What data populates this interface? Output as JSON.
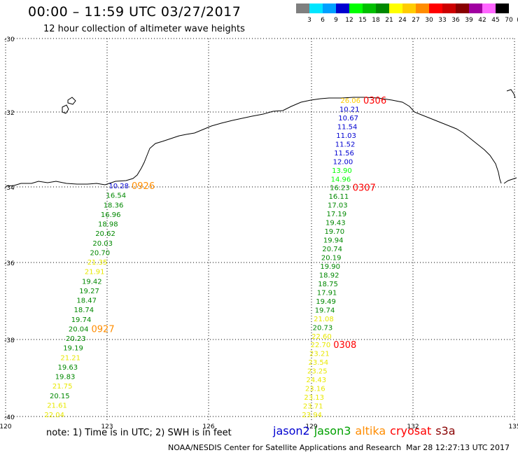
{
  "header": {
    "title": "00:00 – 11:59 UTC 03/27/2017",
    "subtitle": "12 hour collection of altimeter wave heights"
  },
  "color_scale": {
    "unit_label": "(ft)",
    "entries": [
      {
        "label": "3",
        "color": "#7f7f7f"
      },
      {
        "label": "6",
        "color": "#00e5ff"
      },
      {
        "label": "9",
        "color": "#00a0ff"
      },
      {
        "label": "12",
        "color": "#0000d0"
      },
      {
        "label": "15",
        "color": "#00ff00"
      },
      {
        "label": "18",
        "color": "#00c000"
      },
      {
        "label": "21",
        "color": "#008800"
      },
      {
        "label": "24",
        "color": "#ffff00"
      },
      {
        "label": "27",
        "color": "#ffcc00"
      },
      {
        "label": "30",
        "color": "#ff8c00"
      },
      {
        "label": "33",
        "color": "#ff0000"
      },
      {
        "label": "36",
        "color": "#cc0000"
      },
      {
        "label": "39",
        "color": "#880000"
      },
      {
        "label": "42",
        "color": "#a000a0"
      },
      {
        "label": "45",
        "color": "#ff66ff"
      },
      {
        "label": "70",
        "color": "#000000"
      }
    ]
  },
  "axes": {
    "lat_labels": [
      "-30",
      "-32",
      "-34",
      "-36",
      "-38",
      "-40"
    ],
    "lon_labels": [
      "120",
      "123",
      "126",
      "129",
      "132",
      "135"
    ]
  },
  "tracks": [
    {
      "satellite": "altika",
      "time_labels": [
        {
          "text": "0926",
          "at": 0,
          "color": "#ff8c00"
        },
        {
          "text": "0927",
          "at": 15,
          "color": "#ff8c00"
        }
      ],
      "values": [
        {
          "v": "10.28",
          "c": "#0000d0"
        },
        {
          "v": "16.54",
          "c": "#008800"
        },
        {
          "v": "18.36",
          "c": "#008800"
        },
        {
          "v": "16.96",
          "c": "#008800"
        },
        {
          "v": "18.98",
          "c": "#008800"
        },
        {
          "v": "20.62",
          "c": "#008800"
        },
        {
          "v": "20.03",
          "c": "#008800"
        },
        {
          "v": "20.70",
          "c": "#008800"
        },
        {
          "v": "21.35",
          "c": "#e8e800"
        },
        {
          "v": "21.91",
          "c": "#e8e800"
        },
        {
          "v": "19.42",
          "c": "#008800"
        },
        {
          "v": "19.27",
          "c": "#008800"
        },
        {
          "v": "18.47",
          "c": "#008800"
        },
        {
          "v": "18.74",
          "c": "#008800"
        },
        {
          "v": "19.74",
          "c": "#008800"
        },
        {
          "v": "20.04",
          "c": "#008800"
        },
        {
          "v": "20.23",
          "c": "#008800"
        },
        {
          "v": "19.19",
          "c": "#008800"
        },
        {
          "v": "21.21",
          "c": "#e8e800"
        },
        {
          "v": "19.63",
          "c": "#008800"
        },
        {
          "v": "19.83",
          "c": "#008800"
        },
        {
          "v": "21.75",
          "c": "#e8e800"
        },
        {
          "v": "20.15",
          "c": "#008800"
        },
        {
          "v": "21.61",
          "c": "#e8e800"
        },
        {
          "v": "22.04",
          "c": "#e8e800"
        }
      ]
    },
    {
      "satellite": "cryosat",
      "time_labels": [
        {
          "text": "0306",
          "at": 0,
          "color": "#ff0000"
        },
        {
          "text": "0307",
          "at": 10,
          "color": "#ff0000"
        },
        {
          "text": "0308",
          "at": 28,
          "color": "#ff0000"
        }
      ],
      "values": [
        {
          "v": "26.06",
          "c": "#ffcc00"
        },
        {
          "v": "10.21",
          "c": "#0000d0"
        },
        {
          "v": "10.67",
          "c": "#0000d0"
        },
        {
          "v": "11.54",
          "c": "#0000d0"
        },
        {
          "v": "11.03",
          "c": "#0000d0"
        },
        {
          "v": "11.52",
          "c": "#0000d0"
        },
        {
          "v": "11.56",
          "c": "#0000d0"
        },
        {
          "v": "12.00",
          "c": "#0000d0"
        },
        {
          "v": "13.90",
          "c": "#00ff00"
        },
        {
          "v": "14.96",
          "c": "#00ff00"
        },
        {
          "v": "16.23",
          "c": "#008800"
        },
        {
          "v": "16.11",
          "c": "#008800"
        },
        {
          "v": "17.03",
          "c": "#008800"
        },
        {
          "v": "17.19",
          "c": "#008800"
        },
        {
          "v": "19.43",
          "c": "#008800"
        },
        {
          "v": "19.70",
          "c": "#008800"
        },
        {
          "v": "19.94",
          "c": "#008800"
        },
        {
          "v": "20.74",
          "c": "#008800"
        },
        {
          "v": "20.19",
          "c": "#008800"
        },
        {
          "v": "19.90",
          "c": "#008800"
        },
        {
          "v": "18.92",
          "c": "#008800"
        },
        {
          "v": "18.75",
          "c": "#008800"
        },
        {
          "v": "17.91",
          "c": "#008800"
        },
        {
          "v": "19.49",
          "c": "#008800"
        },
        {
          "v": "19.74",
          "c": "#008800"
        },
        {
          "v": "21.08",
          "c": "#e8e800"
        },
        {
          "v": "20.73",
          "c": "#008800"
        },
        {
          "v": "22.60",
          "c": "#e8e800"
        },
        {
          "v": "22.70",
          "c": "#e8e800"
        },
        {
          "v": "23.21",
          "c": "#e8e800"
        },
        {
          "v": "23.54",
          "c": "#e8e800"
        },
        {
          "v": "23.25",
          "c": "#e8e800"
        },
        {
          "v": "24.43",
          "c": "#e8e800"
        },
        {
          "v": "23.16",
          "c": "#e8e800"
        },
        {
          "v": "23.13",
          "c": "#e8e800"
        },
        {
          "v": "23.71",
          "c": "#e8e800"
        },
        {
          "v": "23.94",
          "c": "#e8e800"
        }
      ]
    }
  ],
  "footer": {
    "note": "note: 1) Time is in UTC; 2) SWH is in feet",
    "legend": [
      {
        "name": "jason2",
        "color": "#0000d0"
      },
      {
        "name": "jason3",
        "color": "#00a000"
      },
      {
        "name": "altika",
        "color": "#ff8c00"
      },
      {
        "name": "cryosat",
        "color": "#ff0000"
      },
      {
        "name": "s3a",
        "color": "#880000"
      }
    ],
    "credit": "NOAA/NESDIS Center for Satellite Applications and Research",
    "timestamp": "Mar 28 12:27:13 UTC 2017"
  }
}
